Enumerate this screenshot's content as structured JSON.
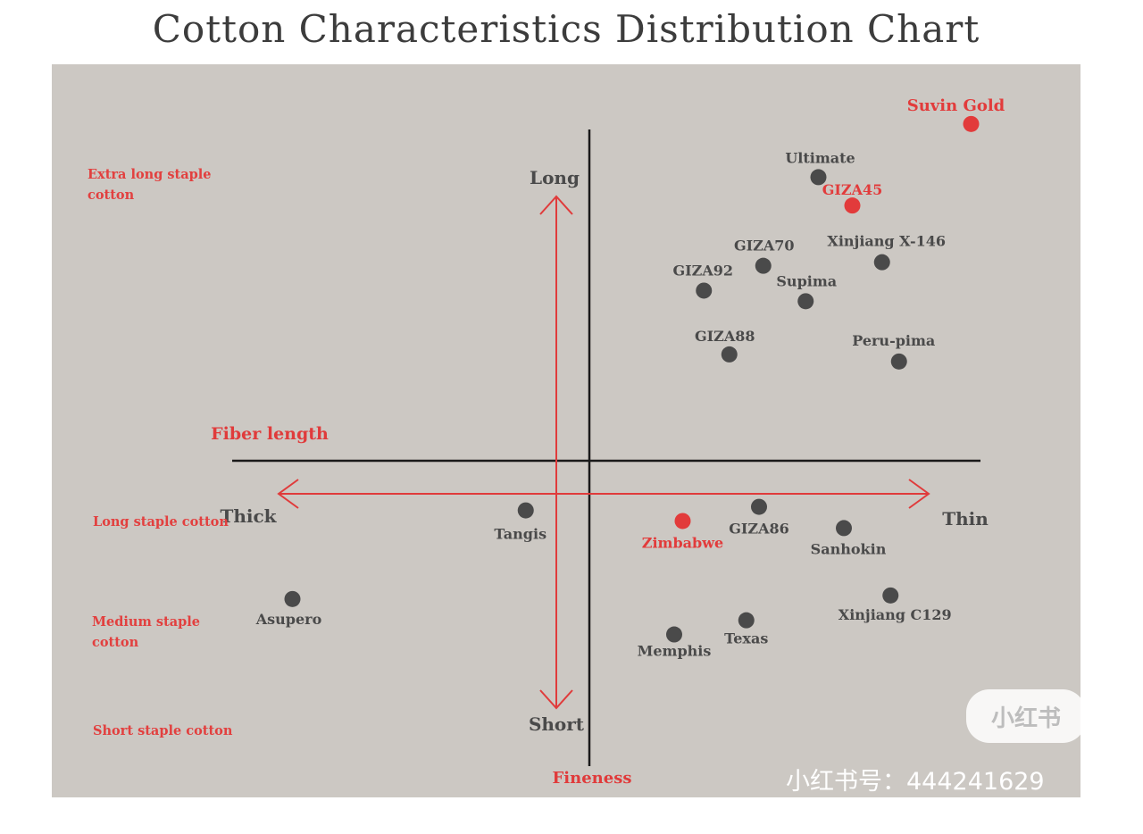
{
  "chart_data": {
    "type": "scatter",
    "title": "Cotton Characteristics Distribution Chart",
    "horizontal_axis": {
      "label": "Fineness",
      "left_end": "Thick",
      "right_end": "Thin",
      "range": [
        -9,
        9
      ]
    },
    "vertical_axis": {
      "label": "Fiber length",
      "top_end": "Long",
      "bottom_end": "Short",
      "range": [
        -9.5,
        10
      ]
    },
    "staple_categories": [
      "Extra long staple cotton",
      "Long staple cotton",
      "Medium staple cotton",
      "Short staple cotton"
    ],
    "grid": false,
    "points": [
      {
        "name": "Suvin Gold",
        "x": 9.0,
        "y": 9.5,
        "highlight": true
      },
      {
        "name": "Ultimate",
        "x": 5.4,
        "y": 8.0,
        "highlight": false
      },
      {
        "name": "GIZA45",
        "x": 6.2,
        "y": 7.2,
        "highlight": true
      },
      {
        "name": "Xinjiang X-146",
        "x": 6.9,
        "y": 5.6,
        "highlight": false
      },
      {
        "name": "GIZA70",
        "x": 4.1,
        "y": 5.5,
        "highlight": false
      },
      {
        "name": "Supima",
        "x": 5.1,
        "y": 4.5,
        "highlight": false
      },
      {
        "name": "GIZA92",
        "x": 2.7,
        "y": 4.8,
        "highlight": false
      },
      {
        "name": "GIZA88",
        "x": 3.3,
        "y": 3.0,
        "highlight": false
      },
      {
        "name": "Peru-pima",
        "x": 7.3,
        "y": 2.8,
        "highlight": false
      },
      {
        "name": "Tangis",
        "x": -1.5,
        "y": -1.4,
        "highlight": false
      },
      {
        "name": "Zimbabwe",
        "x": 2.2,
        "y": -1.7,
        "highlight": true
      },
      {
        "name": "GIZA86",
        "x": 4.0,
        "y": -1.3,
        "highlight": false
      },
      {
        "name": "Sanhokin",
        "x": 6.0,
        "y": -1.9,
        "highlight": false
      },
      {
        "name": "Asupero",
        "x": -7.0,
        "y": -3.9,
        "highlight": false
      },
      {
        "name": "Xinjiang C129",
        "x": 7.1,
        "y": -3.8,
        "highlight": false
      },
      {
        "name": "Texas",
        "x": 3.7,
        "y": -4.5,
        "highlight": false
      },
      {
        "name": "Memphis",
        "x": 2.0,
        "y": -4.9,
        "highlight": false
      }
    ],
    "colors": {
      "point": "#4a4a4a",
      "highlight": "#e23b3b",
      "axis": "#1a1a1a",
      "arrow": "#e03b3b",
      "background": "#ccc8c3"
    }
  },
  "watermark": {
    "badge": "小红书",
    "id": "小红书号：444241629"
  }
}
